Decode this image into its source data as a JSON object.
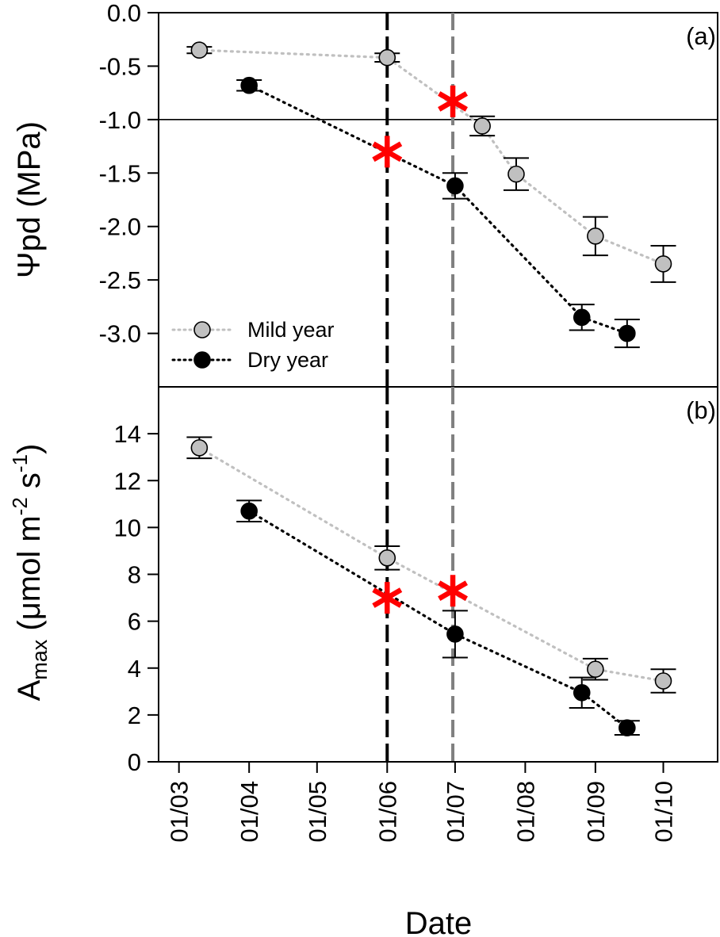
{
  "chart_data": [
    {
      "panel": "a",
      "type": "scatter",
      "panel_label": "(a)",
      "ylabel": {
        "symbol": "Ψ",
        "sub": "pd",
        "rest": " (MPa)"
      },
      "ylim": [
        -3.5,
        0.0
      ],
      "yticks": [
        0.0,
        -0.5,
        -1.0,
        -1.5,
        -2.0,
        -2.5,
        -3.0
      ],
      "ytick_labels": [
        "0.0",
        "-0.5",
        "-1.0",
        "-1.5",
        "-2.0",
        "-2.5",
        "-3.0"
      ],
      "reference_line_y": -1.0,
      "series": [
        {
          "name": "Mild year",
          "color": "#c0c0c0",
          "line_color": "#c0c0c0",
          "x": [
            "2000-03-10",
            "2000-06-01",
            "2000-07-13",
            "2000-07-28",
            "2000-09-01",
            "2000-10-01"
          ],
          "y": [
            -0.35,
            -0.42,
            -1.06,
            -1.51,
            -2.09,
            -2.35
          ],
          "err": [
            0.03,
            0.04,
            0.09,
            0.15,
            0.18,
            0.17
          ]
        },
        {
          "name": "Dry year",
          "color": "#000000",
          "line_color": "#000000",
          "x": [
            "2000-04-01",
            "2000-07-01",
            "2000-08-26",
            "2000-09-15"
          ],
          "y": [
            -0.68,
            -1.62,
            -2.85,
            -3.0
          ],
          "err": [
            0.05,
            0.12,
            0.12,
            0.13
          ]
        }
      ],
      "significance_markers": [
        {
          "x": "2000-06-01",
          "y": -1.3,
          "color": "#ff0000",
          "symbol": "*"
        },
        {
          "x": "2000-06-30",
          "y": -0.83,
          "color": "#ff0000",
          "symbol": "*"
        }
      ],
      "legend": {
        "placement": "bottom-left"
      }
    },
    {
      "panel": "b",
      "type": "scatter",
      "panel_label": "(b)",
      "ylabel": {
        "main": "A",
        "sub": "max",
        "rest": " (μmol m",
        "sup1": "-2",
        "mid": " s",
        "sup2": "-1",
        "end": ")"
      },
      "ylim": [
        0,
        16
      ],
      "yticks": [
        0,
        2,
        4,
        6,
        8,
        10,
        12,
        14
      ],
      "ytick_labels": [
        "0",
        "2",
        "4",
        "6",
        "8",
        "10",
        "12",
        "14"
      ],
      "series": [
        {
          "name": "Mild year",
          "color": "#c0c0c0",
          "line_color": "#c0c0c0",
          "x": [
            "2000-03-10",
            "2000-06-01",
            "2000-09-01",
            "2000-10-01"
          ],
          "y": [
            13.4,
            8.7,
            3.95,
            3.45
          ],
          "err": [
            0.45,
            0.5,
            0.45,
            0.5
          ]
        },
        {
          "name": "Dry year",
          "color": "#000000",
          "line_color": "#000000",
          "x": [
            "2000-04-01",
            "2000-07-01",
            "2000-08-26",
            "2000-09-15"
          ],
          "y": [
            10.7,
            5.45,
            2.95,
            1.45
          ],
          "err": [
            0.45,
            1.0,
            0.65,
            0.3
          ]
        }
      ],
      "significance_markers": [
        {
          "x": "2000-06-01",
          "y": 7.0,
          "color": "#ff0000",
          "symbol": "*"
        },
        {
          "x": "2000-06-30",
          "y": 7.3,
          "color": "#ff0000",
          "symbol": "*"
        }
      ]
    }
  ],
  "shared_x": {
    "xlabel": "Date",
    "xticks": [
      "2000-03-01",
      "2000-04-01",
      "2000-05-01",
      "2000-06-01",
      "2000-07-01",
      "2000-08-01",
      "2000-09-01",
      "2000-10-01"
    ],
    "xtick_labels": [
      "01/03",
      "01/04",
      "01/05",
      "01/06",
      "01/07",
      "01/08",
      "01/09",
      "01/10"
    ],
    "xlim": [
      "2000-02-21",
      "2000-10-25"
    ]
  },
  "vertical_reference_lines": [
    {
      "x": "2000-06-01",
      "color": "#000000",
      "style": "dashed"
    },
    {
      "x": "2000-06-30",
      "color": "#808080",
      "style": "dashed"
    }
  ]
}
